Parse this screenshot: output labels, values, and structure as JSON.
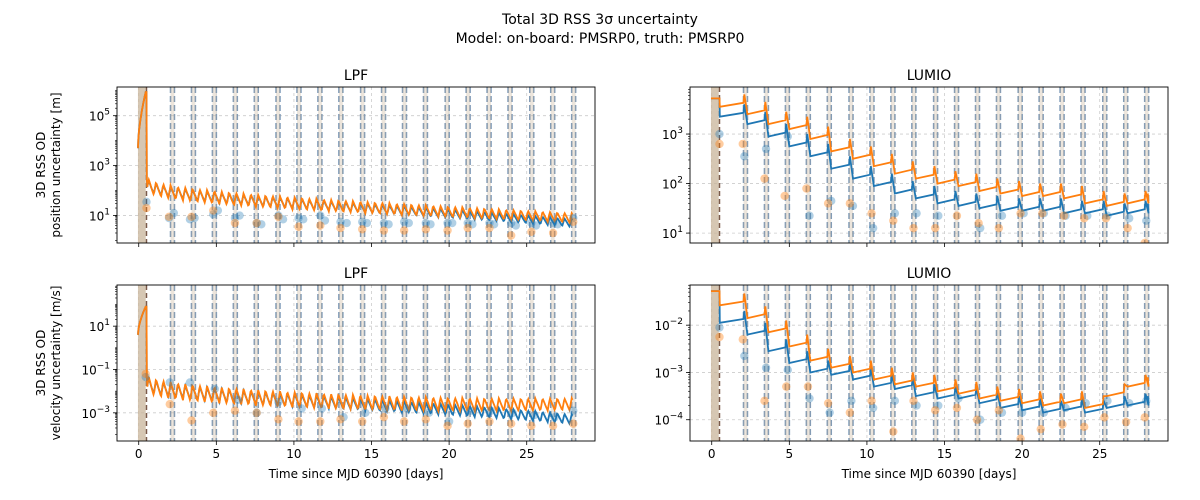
{
  "figure": {
    "title_line1": "Total 3D RSS 3σ uncertainty",
    "title_line2": "Model: on-board: PMSRP0, truth: PMSRP0"
  },
  "chart_data": [
    {
      "type": "line",
      "title": "LPF",
      "ylabel_lines": [
        "3D RSS OD",
        "position uncertainty [m]"
      ],
      "xlabel": "",
      "xlim": [
        -1.4,
        29.4
      ],
      "ylim_log10": [
        -0.1,
        6.15
      ],
      "yscale": "log",
      "xticks": [
        0,
        5,
        10,
        15,
        20,
        25
      ],
      "xtick_labels_visible": false,
      "yticks_exp": [
        1,
        3,
        5
      ],
      "ytick_labels": [
        "10",
        "10",
        "10"
      ],
      "ytick_sups": [
        "1",
        "3",
        "5"
      ],
      "gen": {
        "model": "lpf",
        "logStart": 3.7,
        "logPeak": 5.95,
        "blue_end": 0.7,
        "orange_end": 0.9,
        "blue_osc": 0.45,
        "orange_osc": 0.55,
        "plateau": 2.3,
        "decay_to": 1.0,
        "period": 0.47
      },
      "markers": {
        "blue": [
          [
            1.95,
            0.9
          ],
          [
            2.26,
            1.1
          ],
          [
            3.3,
            0.85
          ],
          [
            3.6,
            0.9
          ],
          [
            4.8,
            1.05
          ],
          [
            5.1,
            1.2
          ],
          [
            6.2,
            0.9
          ],
          [
            6.5,
            1.0
          ],
          [
            7.6,
            0.7
          ],
          [
            7.9,
            0.65
          ],
          [
            9.0,
            1.0
          ],
          [
            9.3,
            0.85
          ],
          [
            10.3,
            0.9
          ],
          [
            10.6,
            0.85
          ],
          [
            11.7,
            1.0
          ],
          [
            12.0,
            0.8
          ],
          [
            13.0,
            0.75
          ],
          [
            13.4,
            0.7
          ],
          [
            14.4,
            0.75
          ],
          [
            14.7,
            0.7
          ],
          [
            15.8,
            0.7
          ],
          [
            16.1,
            0.65
          ],
          [
            17.1,
            0.75
          ],
          [
            17.4,
            0.7
          ],
          [
            18.5,
            0.7
          ],
          [
            18.8,
            0.65
          ],
          [
            19.9,
            0.7
          ],
          [
            20.2,
            0.7
          ],
          [
            21.2,
            0.7
          ],
          [
            21.5,
            0.65
          ],
          [
            22.6,
            0.7
          ],
          [
            22.9,
            0.65
          ],
          [
            24.0,
            0.7
          ],
          [
            24.3,
            0.6
          ],
          [
            25.3,
            0.7
          ],
          [
            25.6,
            0.6
          ],
          [
            26.7,
            0.7
          ],
          [
            27.0,
            0.65
          ],
          [
            28.0,
            0.9
          ],
          [
            0.5,
            1.55
          ]
        ],
        "orange": [
          [
            0.5,
            1.3
          ],
          [
            1.95,
            0.95
          ],
          [
            3.4,
            0.95
          ],
          [
            4.8,
            1.2
          ],
          [
            6.2,
            0.7
          ],
          [
            7.6,
            0.7
          ],
          [
            9.0,
            0.95
          ],
          [
            10.3,
            0.55
          ],
          [
            11.7,
            0.6
          ],
          [
            13.0,
            0.5
          ],
          [
            14.4,
            0.45
          ],
          [
            15.8,
            0.4
          ],
          [
            17.1,
            0.4
          ],
          [
            18.5,
            0.45
          ],
          [
            19.9,
            0.4
          ],
          [
            21.2,
            0.5
          ],
          [
            22.6,
            0.5
          ],
          [
            24.0,
            0.2
          ],
          [
            25.3,
            0.35
          ],
          [
            26.7,
            0.3
          ],
          [
            28.0,
            0.75
          ]
        ]
      }
    },
    {
      "type": "line",
      "title": "LUMIO",
      "ylabel_lines": [],
      "xlabel": "",
      "xlim": [
        -1.4,
        29.4
      ],
      "ylim_log10": [
        0.8,
        3.95
      ],
      "yscale": "log",
      "xticks": [
        0,
        5,
        10,
        15,
        20,
        25
      ],
      "xtick_labels_visible": false,
      "yticks_exp": [
        1,
        2,
        3
      ],
      "ytick_labels": [
        "10",
        "10",
        "10"
      ],
      "ytick_sups": [
        "1",
        "2",
        "3"
      ],
      "gen": {
        "model": "lumio",
        "start": 3.72,
        "drop": 3.35,
        "blue_levels": [
          3.35,
          3.2,
          2.95,
          2.75,
          2.55,
          2.3,
          2.1,
          1.95,
          1.8,
          1.7,
          1.6,
          1.55,
          1.5,
          1.45,
          1.45,
          1.45,
          1.4,
          1.4,
          1.35,
          1.4
        ],
        "orange_levels": [
          3.55,
          3.4,
          3.2,
          3.1,
          2.9,
          2.65,
          2.5,
          2.35,
          2.2,
          2.1,
          2.0,
          1.95,
          1.85,
          1.8,
          1.75,
          1.75,
          1.7,
          1.6,
          1.55,
          1.6
        ]
      },
      "markers": {
        "blue": [
          [
            0.5,
            3.0
          ],
          [
            2.1,
            2.55
          ],
          [
            3.5,
            2.7
          ],
          [
            4.9,
            2.95
          ],
          [
            6.3,
            1.35
          ],
          [
            7.7,
            1.65
          ],
          [
            9.1,
            1.55
          ],
          [
            10.4,
            1.1
          ],
          [
            11.8,
            1.4
          ],
          [
            13.2,
            1.4
          ],
          [
            14.6,
            1.35
          ],
          [
            15.9,
            0.72
          ],
          [
            17.3,
            1.1
          ],
          [
            18.7,
            1.35
          ],
          [
            20.1,
            1.4
          ],
          [
            21.4,
            1.4
          ],
          [
            22.8,
            1.35
          ],
          [
            24.2,
            1.35
          ],
          [
            25.5,
            1.35
          ],
          [
            26.9,
            1.3
          ],
          [
            28.0,
            1.25
          ]
        ],
        "orange": [
          [
            0.5,
            2.8
          ],
          [
            2.0,
            2.8
          ],
          [
            3.4,
            2.1
          ],
          [
            4.7,
            1.75
          ],
          [
            6.1,
            1.9
          ],
          [
            7.5,
            1.6
          ],
          [
            8.9,
            1.6
          ],
          [
            10.3,
            1.4
          ],
          [
            11.7,
            1.25
          ],
          [
            13.0,
            1.1
          ],
          [
            14.4,
            1.1
          ],
          [
            15.8,
            1.35
          ],
          [
            17.2,
            1.2
          ],
          [
            18.5,
            1.1
          ],
          [
            19.9,
            1.4
          ],
          [
            21.3,
            1.4
          ],
          [
            22.7,
            1.35
          ],
          [
            24.0,
            1.3
          ],
          [
            25.4,
            1.3
          ],
          [
            26.8,
            1.1
          ],
          [
            27.9,
            0.8
          ]
        ]
      }
    },
    {
      "type": "line",
      "title": "LPF",
      "ylabel_lines": [
        "3D RSS OD",
        "velocity uncertainty [m/s]"
      ],
      "xlabel": "Time since MJD 60390 [days]",
      "xlim": [
        -1.4,
        29.4
      ],
      "ylim_log10": [
        -4.3,
        2.9
      ],
      "yscale": "log",
      "xticks": [
        0,
        5,
        10,
        15,
        20,
        25
      ],
      "xtick_labels_visible": true,
      "yticks_exp": [
        -3,
        -1,
        1
      ],
      "ytick_labels": [
        "10",
        "10",
        "10"
      ],
      "ytick_sups": [
        "−3",
        "−1",
        "1"
      ],
      "gen": {
        "model": "lpf",
        "logStart": 0.6,
        "logPeak": 1.9,
        "blue_end": -3.3,
        "orange_end": -2.6,
        "blue_osc": 0.65,
        "orange_osc": 0.8,
        "plateau": -1.6,
        "decay_to": -2.9,
        "period": 0.47
      },
      "markers": {
        "blue": [
          [
            0.45,
            -1.35
          ],
          [
            2.0,
            -1.6
          ],
          [
            3.3,
            -1.6
          ],
          [
            4.9,
            -1.9
          ],
          [
            6.4,
            -2.4
          ],
          [
            7.6,
            -3.0
          ],
          [
            9.0,
            -2.5
          ],
          [
            10.5,
            -2.8
          ],
          [
            11.8,
            -2.8
          ],
          [
            13.2,
            -3.2
          ],
          [
            14.6,
            -3.0
          ],
          [
            15.9,
            -2.8
          ],
          [
            17.3,
            -2.8
          ],
          [
            18.7,
            -3.0
          ],
          [
            20.0,
            -3.4
          ],
          [
            21.4,
            -2.9
          ],
          [
            22.7,
            -2.9
          ],
          [
            24.1,
            -3.0
          ],
          [
            25.5,
            -3.1
          ],
          [
            26.8,
            -3.2
          ],
          [
            28.0,
            -2.9
          ]
        ],
        "orange": [
          [
            0.45,
            -1.2
          ],
          [
            2.0,
            -2.6
          ],
          [
            3.4,
            -3.35
          ],
          [
            4.8,
            -3.0
          ],
          [
            6.2,
            -2.9
          ],
          [
            7.6,
            -3.0
          ],
          [
            9.0,
            -3.3
          ],
          [
            10.3,
            -3.4
          ],
          [
            11.7,
            -3.4
          ],
          [
            13.0,
            -3.3
          ],
          [
            14.4,
            -3.4
          ],
          [
            15.8,
            -3.2
          ],
          [
            17.1,
            -3.4
          ],
          [
            18.5,
            -3.3
          ],
          [
            19.9,
            -3.6
          ],
          [
            21.2,
            -3.5
          ],
          [
            22.6,
            -3.4
          ],
          [
            24.0,
            -3.5
          ],
          [
            25.3,
            -3.6
          ],
          [
            26.7,
            -3.6
          ],
          [
            28.0,
            -3.5
          ]
        ]
      }
    },
    {
      "type": "line",
      "title": "LUMIO",
      "ylabel_lines": [],
      "xlabel": "Time since MJD 60390 [days]",
      "xlim": [
        -1.4,
        29.4
      ],
      "ylim_log10": [
        -4.45,
        -1.15
      ],
      "yscale": "log",
      "xticks": [
        0,
        5,
        10,
        15,
        20,
        25
      ],
      "xtick_labels_visible": true,
      "yticks_exp": [
        -4,
        -3,
        -2
      ],
      "ytick_labels": [
        "10",
        "10",
        "10"
      ],
      "ytick_sups": [
        "−4",
        "−3",
        "−2"
      ],
      "gen": {
        "model": "lumio",
        "start": -1.28,
        "drop": -1.58,
        "blue_levels": [
          -1.95,
          -2.2,
          -2.55,
          -2.8,
          -3.0,
          -3.05,
          -3.15,
          -3.3,
          -3.35,
          -3.5,
          -3.55,
          -3.55,
          -3.65,
          -3.75,
          -3.8,
          -3.85,
          -3.8,
          -3.85,
          -3.75,
          -3.7
        ],
        "orange_levels": [
          -1.58,
          -1.85,
          -2.15,
          -2.45,
          -2.75,
          -2.9,
          -3.0,
          -3.15,
          -3.25,
          -3.3,
          -3.4,
          -3.45,
          -3.55,
          -3.6,
          -3.65,
          -3.7,
          -3.65,
          -3.75,
          -3.5,
          -3.3
        ]
      },
      "markers": {
        "blue": [
          [
            0.5,
            -2.05
          ],
          [
            2.1,
            -2.65
          ],
          [
            3.5,
            -2.9
          ],
          [
            4.9,
            -2.95
          ],
          [
            6.3,
            -3.55
          ],
          [
            7.6,
            -3.85
          ],
          [
            9.0,
            -3.6
          ],
          [
            10.4,
            -3.75
          ],
          [
            11.8,
            -3.6
          ],
          [
            13.2,
            -3.7
          ],
          [
            14.6,
            -3.7
          ],
          [
            15.9,
            -3.55
          ],
          [
            17.3,
            -4.0
          ],
          [
            18.7,
            -3.85
          ],
          [
            20.0,
            -3.85
          ],
          [
            21.4,
            -3.85
          ],
          [
            22.8,
            -3.75
          ],
          [
            24.1,
            -3.65
          ],
          [
            25.5,
            -3.6
          ],
          [
            26.9,
            -3.65
          ],
          [
            28.0,
            -3.6
          ]
        ],
        "orange": [
          [
            0.5,
            -2.25
          ],
          [
            2.0,
            -2.3
          ],
          [
            3.4,
            -3.6
          ],
          [
            4.8,
            -3.3
          ],
          [
            6.2,
            -3.3
          ],
          [
            7.5,
            -3.65
          ],
          [
            8.9,
            -3.85
          ],
          [
            10.3,
            -3.6
          ],
          [
            11.7,
            -4.25
          ],
          [
            13.0,
            -3.6
          ],
          [
            14.4,
            -3.8
          ],
          [
            15.8,
            -3.75
          ],
          [
            17.1,
            -4.0
          ],
          [
            18.5,
            -3.8
          ],
          [
            19.9,
            -4.4
          ],
          [
            21.2,
            -4.2
          ],
          [
            22.6,
            -4.1
          ],
          [
            24.0,
            -4.15
          ],
          [
            25.3,
            -3.95
          ],
          [
            26.7,
            -4.05
          ],
          [
            27.9,
            -3.95
          ]
        ]
      }
    }
  ],
  "observation_windows": [
    [
      2.05,
      2.3
    ],
    [
      3.4,
      3.65
    ],
    [
      4.75,
      5.0
    ],
    [
      6.1,
      6.35
    ],
    [
      7.45,
      7.7
    ],
    [
      8.85,
      9.1
    ],
    [
      10.2,
      10.45
    ],
    [
      11.55,
      11.8
    ],
    [
      12.9,
      13.15
    ],
    [
      14.3,
      14.55
    ],
    [
      15.65,
      15.9
    ],
    [
      17.0,
      17.25
    ],
    [
      18.35,
      18.6
    ],
    [
      19.75,
      20.0
    ],
    [
      21.1,
      21.35
    ],
    [
      22.45,
      22.7
    ],
    [
      23.8,
      24.05
    ],
    [
      25.2,
      25.45
    ],
    [
      26.55,
      26.8
    ],
    [
      27.9,
      28.15
    ]
  ],
  "shaded_interval": [
    -0.05,
    0.45
  ],
  "colors": {
    "blue": "#1f77b4",
    "orange": "#ff7f0e",
    "window_line": "#6f8fb0",
    "shade": "#c8b49a",
    "grid": "#cccccc",
    "start_line": "#7a5a4a"
  }
}
